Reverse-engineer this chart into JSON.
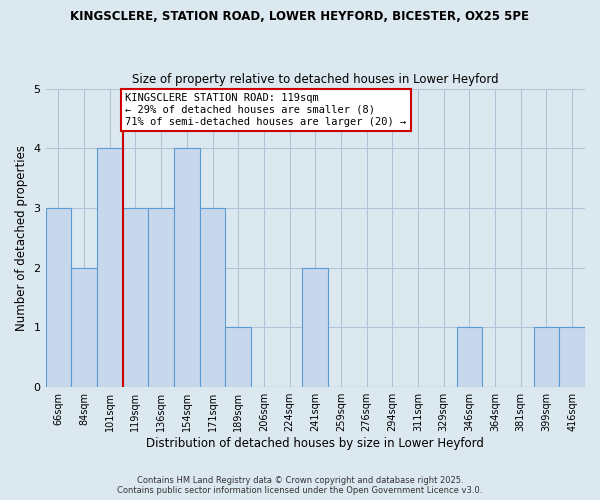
{
  "title_line1": "KINGSCLERE, STATION ROAD, LOWER HEYFORD, BICESTER, OX25 5PE",
  "title_line2": "Size of property relative to detached houses in Lower Heyford",
  "xlabel": "Distribution of detached houses by size in Lower Heyford",
  "ylabel": "Number of detached properties",
  "bins": [
    "66sqm",
    "84sqm",
    "101sqm",
    "119sqm",
    "136sqm",
    "154sqm",
    "171sqm",
    "189sqm",
    "206sqm",
    "224sqm",
    "241sqm",
    "259sqm",
    "276sqm",
    "294sqm",
    "311sqm",
    "329sqm",
    "346sqm",
    "364sqm",
    "381sqm",
    "399sqm",
    "416sqm"
  ],
  "values": [
    3,
    2,
    4,
    3,
    3,
    4,
    3,
    1,
    0,
    0,
    2,
    0,
    0,
    0,
    0,
    0,
    1,
    0,
    0,
    1,
    1
  ],
  "bar_color": "#c8d8ec",
  "bar_edge_color": "#5b9bd5",
  "vline_index": 3,
  "vline_color": "#cc0000",
  "ylim": [
    0,
    5
  ],
  "yticks": [
    0,
    1,
    2,
    3,
    4,
    5
  ],
  "annotation_title": "KINGSCLERE STATION ROAD: 119sqm",
  "annotation_line1": "← 29% of detached houses are smaller (8)",
  "annotation_line2": "71% of semi-detached houses are larger (20) →",
  "footer_line1": "Contains HM Land Registry data © Crown copyright and database right 2025.",
  "footer_line2": "Contains public sector information licensed under the Open Government Licence v3.0.",
  "bg_color": "#dce8f0",
  "plot_bg_color": "#dce8f0",
  "grid_color": "#b0c4d8",
  "title1_fontsize": 8.5,
  "title2_fontsize": 8.5
}
